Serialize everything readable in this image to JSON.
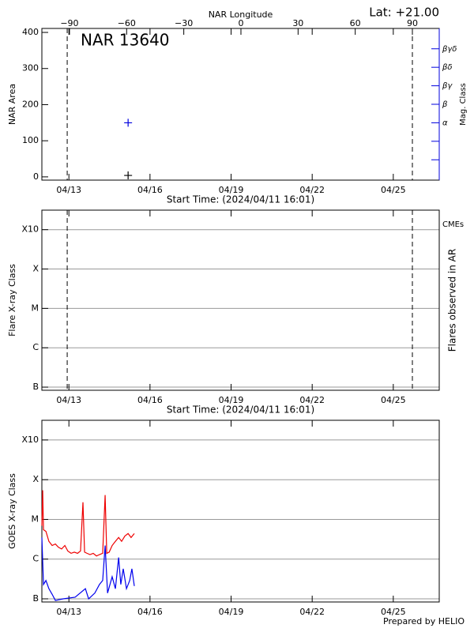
{
  "chart_data": [
    {
      "type": "scatter",
      "title": "NAR 13640",
      "annotation": "Lat: +21.00",
      "xlabel": "Start Time: (2024/04/11 16:01)",
      "x2label": "NAR Longitude",
      "ylabel": "NAR Area",
      "y2label": "Mag. Class",
      "xlim": [
        12.0,
        26.7
      ],
      "xticks": [
        {
          "value": 13,
          "label": "04/13"
        },
        {
          "value": 16,
          "label": "04/16"
        },
        {
          "value": 19,
          "label": "04/19"
        },
        {
          "value": 22,
          "label": "04/22"
        },
        {
          "value": 25,
          "label": "04/25"
        }
      ],
      "x2lim": [
        -104.5,
        104.1
      ],
      "x2ticks": [
        {
          "value": -90,
          "label": "−90"
        },
        {
          "value": -60,
          "label": "−60"
        },
        {
          "value": -30,
          "label": "−30"
        },
        0,
        30,
        60,
        90
      ],
      "ylim": [
        -9,
        411
      ],
      "yticks": [
        0,
        100,
        200,
        300,
        400
      ],
      "y2lim": [
        -0.1,
        8.1
      ],
      "y2ticks": [
        {
          "value": 3,
          "label": "α"
        },
        {
          "value": 4,
          "label": "β"
        },
        {
          "value": 5,
          "label": "βγ"
        },
        {
          "value": 6,
          "label": "βδ"
        },
        {
          "value": 7,
          "label": "βγδ"
        }
      ],
      "y2minor_ticks": [
        1,
        2
      ],
      "y2color": "#0000dd",
      "limb_longitudes": [
        -91.2,
        90
      ],
      "series": [
        {
          "color": "#000000",
          "x": [
            15.19
          ],
          "values": [
            4
          ]
        },
        {
          "color": "#0000dd",
          "axis": "y2",
          "x": [
            15.19
          ],
          "values": [
            3
          ]
        }
      ]
    },
    {
      "type": "scatter",
      "annotation": "CMEs",
      "annotation_color": "#dd0000",
      "xlabel": "Start Time: (2024/04/11 16:01)",
      "ylabel": "Flare X-ray Class",
      "y2label": "Flares observed in AR",
      "xlim": [
        12.0,
        26.7
      ],
      "xticks": [
        {
          "value": 13,
          "label": "04/13"
        },
        {
          "value": 16,
          "label": "04/16"
        },
        {
          "value": 19,
          "label": "04/19"
        },
        {
          "value": 22,
          "label": "04/22"
        },
        {
          "value": 25,
          "label": "04/25"
        }
      ],
      "x2lim": [
        -104.5,
        104.1
      ],
      "limb_longitudes": [
        -91.2,
        90
      ],
      "log_scale": true,
      "grid": true,
      "ylim": [
        8.33e-08,
        0.00313
      ],
      "yticks": [
        {
          "value": 1e-07,
          "label": "B"
        },
        {
          "value": 1e-06,
          "label": "C"
        },
        {
          "value": 1e-05,
          "label": "M"
        },
        {
          "value": 0.0001,
          "label": "X"
        },
        {
          "value": 0.001,
          "label": "X10"
        }
      ]
    },
    {
      "type": "line",
      "ylabel": "GOES X-ray Class",
      "xlim": [
        12.0,
        26.7
      ],
      "xticks": [
        {
          "value": 13,
          "label": "04/13"
        },
        {
          "value": 16,
          "label": "04/16"
        },
        {
          "value": 19,
          "label": "04/19"
        },
        {
          "value": 22,
          "label": "04/22"
        },
        {
          "value": 25,
          "label": "04/25"
        }
      ],
      "log_scale": true,
      "grid": true,
      "ylim": [
        8.33e-08,
        0.00313
      ],
      "yticks": [
        {
          "value": 1e-07,
          "label": "B"
        },
        {
          "value": 1e-06,
          "label": "C"
        },
        {
          "value": 1e-05,
          "label": "M"
        },
        {
          "value": 0.0001,
          "label": "X"
        },
        {
          "value": 0.001,
          "label": "X10"
        }
      ],
      "series": [
        {
          "color": "#ee0000",
          "x": [
            12.0,
            12.03,
            12.06,
            12.15,
            12.26,
            12.38,
            12.5,
            12.61,
            12.73,
            12.85,
            12.96,
            13.08,
            13.2,
            13.32,
            13.43,
            13.52,
            13.58,
            13.67,
            13.78,
            13.9,
            14.02,
            14.13,
            14.25,
            14.34,
            14.4,
            14.49,
            14.6,
            14.72,
            14.84,
            14.95,
            15.07,
            15.19,
            15.3,
            15.42
          ],
          "values": [
            6.9e-06,
            5.4e-05,
            5.5e-06,
            5e-06,
            2.8e-06,
            2.2e-06,
            2.4e-06,
            2e-06,
            1.8e-06,
            2.2e-06,
            1.6e-06,
            1.4e-06,
            1.5e-06,
            1.4e-06,
            1.6e-06,
            2.7e-05,
            1.5e-06,
            1.4e-06,
            1.3e-06,
            1.4e-06,
            1.2e-06,
            1.3e-06,
            1.4e-06,
            4.1e-05,
            1.4e-06,
            1.5e-06,
            2.2e-06,
            2.8e-06,
            3.5e-06,
            2.8e-06,
            3.8e-06,
            4.4e-06,
            3.5e-06,
            4.4e-06
          ]
        },
        {
          "color": "#0000ee",
          "x": [
            12.0,
            12.06,
            12.15,
            12.26,
            12.38,
            12.5,
            12.79,
            13.23,
            13.61,
            13.73,
            13.96,
            14.13,
            14.25,
            14.34,
            14.43,
            14.6,
            14.72,
            14.84,
            14.92,
            15.01,
            15.13,
            15.25,
            15.33,
            15.42
          ],
          "values": [
            3.5e-06,
            2.3e-07,
            2.9e-07,
            1.8e-07,
            1.3e-07,
            9.1e-08,
            1e-07,
            1.1e-07,
            1.8e-07,
            1e-07,
            1.4e-07,
            2.3e-07,
            2.9e-07,
            2.2e-06,
            1.4e-07,
            3.6e-07,
            1.8e-07,
            1.1e-06,
            2.3e-07,
            5.7e-07,
            1.8e-07,
            2.9e-07,
            5.7e-07,
            2.1e-07
          ]
        }
      ]
    }
  ],
  "footer": "Prepared by HELIO"
}
